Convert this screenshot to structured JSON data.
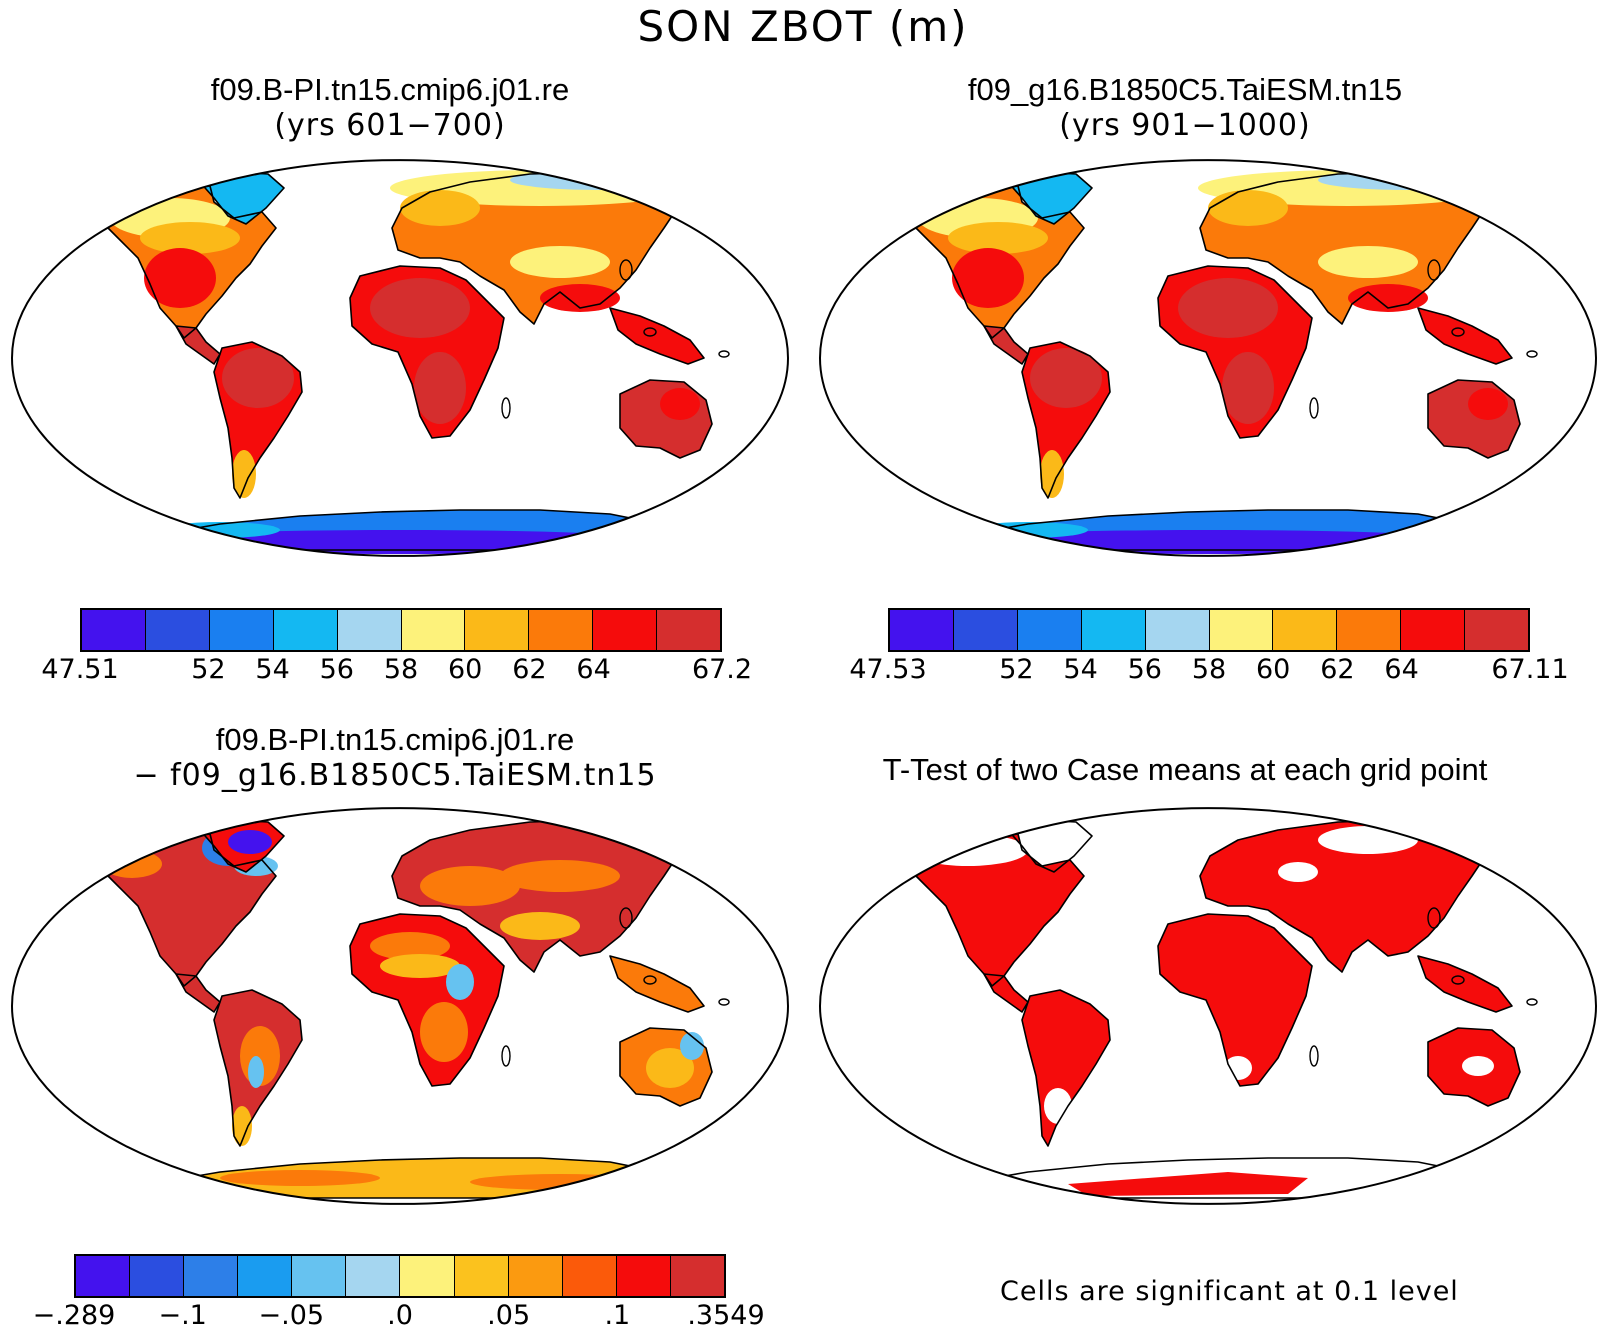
{
  "title": "SON ZBOT (m)",
  "panels": [
    {
      "id": "case1",
      "title": "f09.B-PI.tn15.cmip6.j01.re",
      "subtitle": "(yrs 601−700)",
      "colorbar": {
        "colors": [
          "#4412ee",
          "#2b4ee0",
          "#1a7ff0",
          "#14b8f2",
          "#a5d6f0",
          "#fdf27b",
          "#fbb918",
          "#fb7a0a",
          "#f50c0c",
          "#d52e2e"
        ],
        "labels": [
          "47.51",
          "52",
          "54",
          "56",
          "58",
          "60",
          "62",
          "64",
          "67.2"
        ],
        "label_positions": [
          0,
          2,
          3,
          4,
          5,
          6,
          7,
          8,
          10
        ]
      }
    },
    {
      "id": "case2",
      "title": "f09_g16.B1850C5.TaiESM.tn15",
      "subtitle": "(yrs 901−1000)",
      "colorbar": {
        "colors": [
          "#4412ee",
          "#2b4ee0",
          "#1a7ff0",
          "#14b8f2",
          "#a5d6f0",
          "#fdf27b",
          "#fbb918",
          "#fb7a0a",
          "#f50c0c",
          "#d52e2e"
        ],
        "labels": [
          "47.53",
          "52",
          "54",
          "56",
          "58",
          "60",
          "62",
          "64",
          "67.11"
        ],
        "label_positions": [
          0,
          2,
          3,
          4,
          5,
          6,
          7,
          8,
          10
        ]
      }
    },
    {
      "id": "difference",
      "title": "f09.B-PI.tn15.cmip6.j01.re",
      "subtitle": "− f09_g16.B1850C5.TaiESM.tn15",
      "colorbar": {
        "colors": [
          "#4412ee",
          "#2b4ee0",
          "#2d7fe8",
          "#1a9cf0",
          "#66c2f0",
          "#a5d6f0",
          "#fdf27b",
          "#fbc21e",
          "#fb9a10",
          "#fb5a0a",
          "#f50c0c",
          "#d52e2e"
        ],
        "labels": [
          "−.289",
          "−.1",
          "−.05",
          ".0",
          ".05",
          ".1",
          ".3549"
        ],
        "label_positions": [
          0,
          2,
          4,
          6,
          8,
          10,
          12
        ]
      }
    },
    {
      "id": "ttest",
      "title": "T-Test of two Case means at each grid point",
      "subtitle": "",
      "note": "Cells are significant at 0.1 level"
    }
  ]
}
